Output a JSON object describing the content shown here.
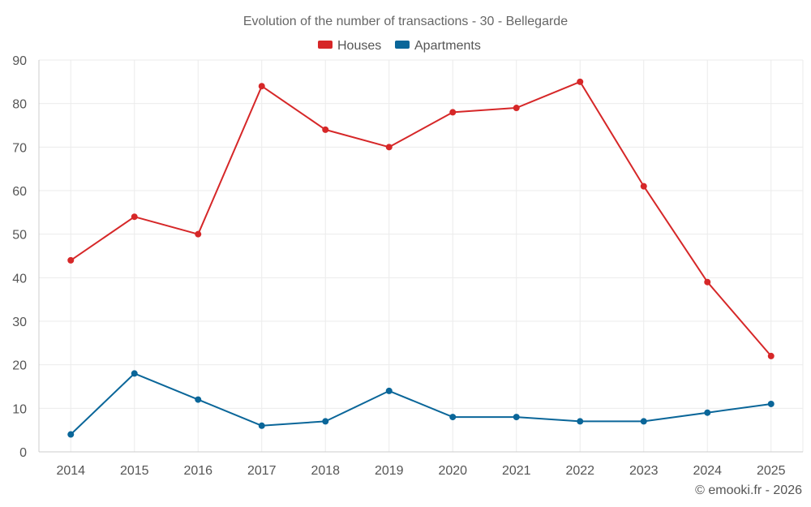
{
  "chart_data": {
    "type": "line",
    "title": "Evolution of the number of transactions - 30 - Bellegarde",
    "categories": [
      "2014",
      "2015",
      "2016",
      "2017",
      "2018",
      "2019",
      "2020",
      "2021",
      "2022",
      "2023",
      "2024",
      "2025"
    ],
    "series": [
      {
        "name": "Houses",
        "color": "#d62728",
        "values": [
          44,
          54,
          50,
          84,
          74,
          70,
          78,
          79,
          85,
          61,
          39,
          22
        ]
      },
      {
        "name": "Apartments",
        "color": "#0a6699",
        "values": [
          4,
          18,
          12,
          6,
          7,
          14,
          8,
          8,
          7,
          7,
          9,
          11
        ]
      }
    ],
    "ylim": [
      0,
      90
    ],
    "yticks": [
      "0",
      "10",
      "20",
      "30",
      "40",
      "50",
      "60",
      "70",
      "80",
      "90"
    ],
    "xlabel": "",
    "ylabel": "",
    "legend_position": "top-center",
    "grid": true
  },
  "credit": "© emooki.fr - 2026"
}
